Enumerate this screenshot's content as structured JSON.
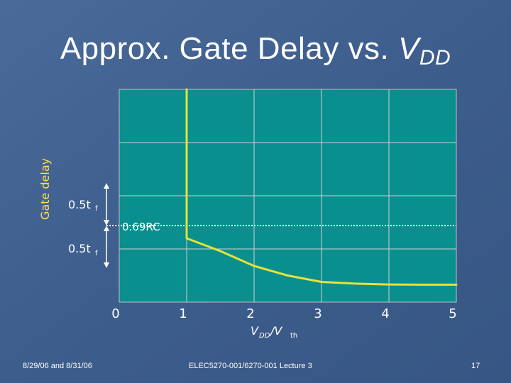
{
  "title": {
    "main": "Approx. Gate Delay vs. ",
    "v": "V",
    "sub": "DD"
  },
  "colors": {
    "background": "#3f5f8f",
    "plot_area": "#0a8f8f",
    "curve": "#e6e23a",
    "grid": "#d0d0d0",
    "text": "#ffffff",
    "ylabel": "#ffe24a"
  },
  "footer": {
    "date": "8/29/06 and 8/31/06",
    "course": "ELEC5270-001/6270-001 Lecture 3",
    "page": "17"
  },
  "chart_data": {
    "type": "line",
    "title": "Approx. Gate Delay vs. VDD",
    "ylabel": "Gate delay",
    "xlabel_parts": {
      "v": "V",
      "dd": "DD",
      "slash": " /V",
      "th": "th"
    },
    "xlim": [
      0,
      5
    ],
    "x_ticks": [
      "0",
      "1",
      "2",
      "3",
      "4",
      "5"
    ],
    "grid": true,
    "y_annotations": {
      "label_0_5tf": "0.5t",
      "label_f": "f",
      "label_069rc": "0.69RC"
    },
    "series": [
      {
        "points": [
          [
            1,
            10.0
          ],
          [
            1,
            3.0
          ],
          [
            1.5,
            2.4
          ],
          [
            2,
            1.7
          ],
          [
            2.5,
            1.25
          ],
          [
            3,
            0.95
          ],
          [
            3.5,
            0.87
          ],
          [
            4,
            0.83
          ],
          [
            4.5,
            0.82
          ],
          [
            5,
            0.82
          ]
        ]
      }
    ]
  }
}
